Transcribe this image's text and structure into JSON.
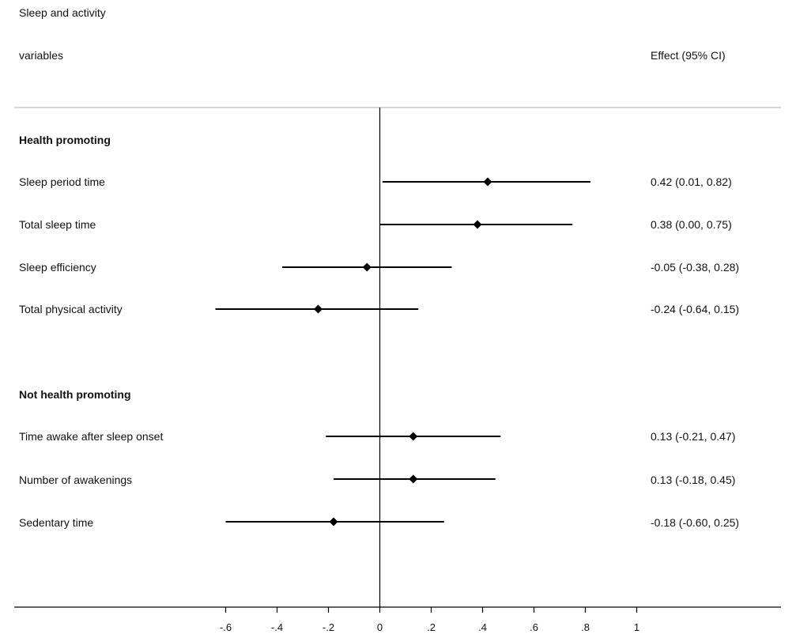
{
  "header": {
    "col1_line1": "Sleep and activity",
    "col1_line2": "variables",
    "col2": "Effect (95% CI)"
  },
  "colors": {
    "ink": "#000000",
    "divider": "#c8c8c8"
  },
  "chart_data": {
    "type": "forest",
    "title": "",
    "xlabel": "",
    "ylabel": "",
    "xlim": [
      -0.6,
      1
    ],
    "ticks": [
      {
        "value": -0.6,
        "label": "-.6"
      },
      {
        "value": -0.4,
        "label": "-.4"
      },
      {
        "value": -0.2,
        "label": "-.2"
      },
      {
        "value": 0,
        "label": "0"
      },
      {
        "value": 0.2,
        "label": ".2"
      },
      {
        "value": 0.4,
        "label": ".4"
      },
      {
        "value": 0.6,
        "label": ".6"
      },
      {
        "value": 0.8,
        "label": ".8"
      },
      {
        "value": 1,
        "label": "1"
      }
    ],
    "reference_line": 0,
    "groups": [
      {
        "name": "Health promoting",
        "rows": [
          {
            "label": "Sleep period time",
            "estimate": 0.42,
            "lower": 0.01,
            "upper": 0.82,
            "effect_text": "0.42 (0.01, 0.82)"
          },
          {
            "label": "Total sleep time",
            "estimate": 0.38,
            "lower": 0.0,
            "upper": 0.75,
            "effect_text": "0.38 (0.00, 0.75)"
          },
          {
            "label": "Sleep efficiency",
            "estimate": -0.05,
            "lower": -0.38,
            "upper": 0.28,
            "effect_text": "-0.05 (-0.38, 0.28)"
          },
          {
            "label": "Total physical activity",
            "estimate": -0.24,
            "lower": -0.64,
            "upper": 0.15,
            "effect_text": "-0.24 (-0.64, 0.15)"
          }
        ]
      },
      {
        "name": "Not health promoting",
        "rows": [
          {
            "label": "Time awake after sleep onset",
            "estimate": 0.13,
            "lower": -0.21,
            "upper": 0.47,
            "effect_text": "0.13 (-0.21, 0.47)"
          },
          {
            "label": "Number of awakenings",
            "estimate": 0.13,
            "lower": -0.18,
            "upper": 0.45,
            "effect_text": "0.13 (-0.18, 0.45)"
          },
          {
            "label": "Sedentary time",
            "estimate": -0.18,
            "lower": -0.6,
            "upper": 0.25,
            "effect_text": "-0.18 (-0.60, 0.25)"
          }
        ]
      }
    ]
  }
}
